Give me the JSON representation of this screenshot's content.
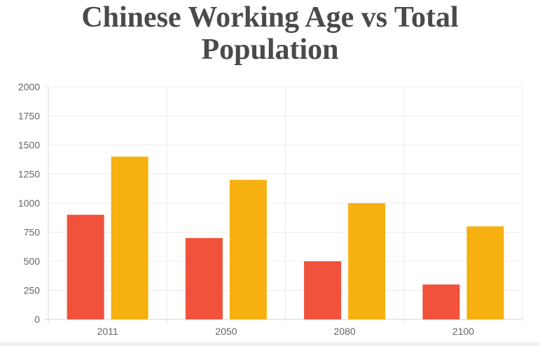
{
  "chart_data": {
    "type": "bar",
    "title_lines": [
      "Chinese Working Age vs Total",
      "Population"
    ],
    "categories": [
      "2011",
      "2050",
      "2080",
      "2100"
    ],
    "series": [
      {
        "values": [
          900,
          700,
          500,
          300
        ],
        "color": "#f0523b"
      },
      {
        "values": [
          1400,
          1200,
          1000,
          800
        ],
        "color": "#f6b110"
      }
    ],
    "ylim": [
      0,
      2000
    ],
    "yticks": [
      0,
      250,
      500,
      750,
      1000,
      1250,
      1500,
      1750,
      2000
    ],
    "grid": true,
    "legend": "none"
  }
}
